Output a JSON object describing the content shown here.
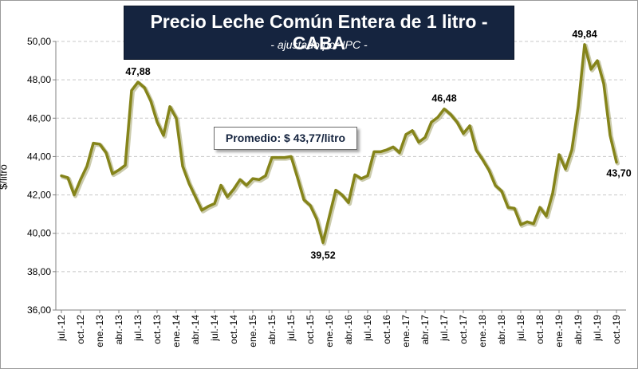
{
  "chart_data": {
    "type": "line",
    "title": "Precio Leche Común Entera de 1 litro - CABA",
    "subtitle": "- ajustado por IPC -",
    "ylabel": "$/litro",
    "xlabel": "",
    "ylim": [
      36,
      50
    ],
    "yticks": [
      "36,00",
      "38,00",
      "40,00",
      "42,00",
      "44,00",
      "46,00",
      "48,00",
      "50,00"
    ],
    "grid": true,
    "annotation": "Promedio: $ 43,77/litro",
    "line_color": "#85841a",
    "categories": [
      "jul.-12",
      "ago.-12",
      "sep.-12",
      "oct.-12",
      "nov.-12",
      "dic.-12",
      "ene.-13",
      "feb.-13",
      "mar.-13",
      "abr.-13",
      "may.-13",
      "jun.-13",
      "jul.-13",
      "ago.-13",
      "sep.-13",
      "oct.-13",
      "nov.-13",
      "dic.-13",
      "ene.-14",
      "feb.-14",
      "mar.-14",
      "abr.-14",
      "may.-14",
      "jun.-14",
      "jul.-14",
      "ago.-14",
      "sep.-14",
      "oct.-14",
      "nov.-14",
      "dic.-14",
      "ene.-15",
      "feb.-15",
      "mar.-15",
      "abr.-15",
      "may.-15",
      "jun.-15",
      "jul.-15",
      "ago.-15",
      "sep.-15",
      "oct.-15",
      "nov.-15",
      "dic.-15",
      "ene.-16",
      "feb.-16",
      "mar.-16",
      "abr.-16",
      "may.-16",
      "jun.-16",
      "jul.-16",
      "ago.-16",
      "sep.-16",
      "oct.-16",
      "nov.-16",
      "dic.-16",
      "ene.-17",
      "feb.-17",
      "mar.-17",
      "abr.-17",
      "may.-17",
      "jun.-17",
      "jul.-17",
      "ago.-17",
      "sep.-17",
      "oct.-17",
      "nov.-17",
      "dic.-17",
      "ene.-18",
      "feb.-18",
      "mar.-18",
      "abr.-18",
      "may.-18",
      "jun.-18",
      "jul.-18",
      "ago.-18",
      "sep.-18",
      "oct.-18",
      "nov.-18",
      "dic.-18",
      "ene.-19",
      "feb.-19",
      "mar.-19",
      "abr.-19",
      "may.-19",
      "jun.-19",
      "jul.-19",
      "ago.-19",
      "sep.-19",
      "oct.-19"
    ],
    "tick_labels": [
      "jul.-12",
      "oct.-12",
      "ene.-13",
      "abr.-13",
      "jul.-13",
      "oct.-13",
      "ene.-14",
      "abr.-14",
      "jul.-14",
      "oct.-14",
      "ene.-15",
      "abr.-15",
      "jul.-15",
      "oct.-15",
      "ene.-16",
      "abr.-16",
      "jul.-16",
      "oct.-16",
      "ene.-17",
      "abr.-17",
      "jul.-17",
      "oct.-17",
      "ene.-18",
      "abr.-18",
      "jul.-18",
      "oct.-18",
      "ene.-19",
      "abr.-19",
      "jul.-19",
      "oct.-19"
    ],
    "values": [
      43.0,
      42.9,
      42.0,
      42.8,
      43.5,
      44.7,
      44.65,
      44.2,
      43.1,
      43.3,
      43.55,
      47.45,
      47.88,
      47.6,
      46.9,
      45.8,
      45.1,
      46.6,
      46.0,
      43.5,
      42.6,
      41.9,
      41.2,
      41.4,
      41.55,
      42.5,
      41.9,
      42.3,
      42.8,
      42.5,
      42.85,
      42.8,
      43.0,
      43.95,
      43.95,
      43.95,
      44.0,
      42.9,
      41.75,
      41.45,
      40.75,
      39.52,
      40.9,
      42.25,
      42.0,
      41.6,
      43.05,
      42.85,
      43.0,
      44.25,
      44.25,
      44.35,
      44.5,
      44.2,
      45.15,
      45.35,
      44.75,
      45.0,
      45.8,
      46.05,
      46.48,
      46.2,
      45.8,
      45.2,
      45.6,
      44.35,
      43.85,
      43.3,
      42.5,
      42.2,
      41.35,
      41.3,
      40.45,
      40.6,
      40.5,
      41.35,
      40.9,
      42.1,
      44.1,
      43.35,
      44.35,
      46.6,
      49.84,
      48.55,
      49.0,
      47.8,
      45.1,
      43.7
    ],
    "data_labels": [
      {
        "label": "47,88",
        "index": 12,
        "value": 47.88
      },
      {
        "label": "39,52",
        "index": 41,
        "value": 39.52
      },
      {
        "label": "46,48",
        "index": 60,
        "value": 46.48
      },
      {
        "label": "49,84",
        "index": 82,
        "value": 49.84
      },
      {
        "label": "43,70",
        "index": 87,
        "value": 43.7
      }
    ]
  }
}
